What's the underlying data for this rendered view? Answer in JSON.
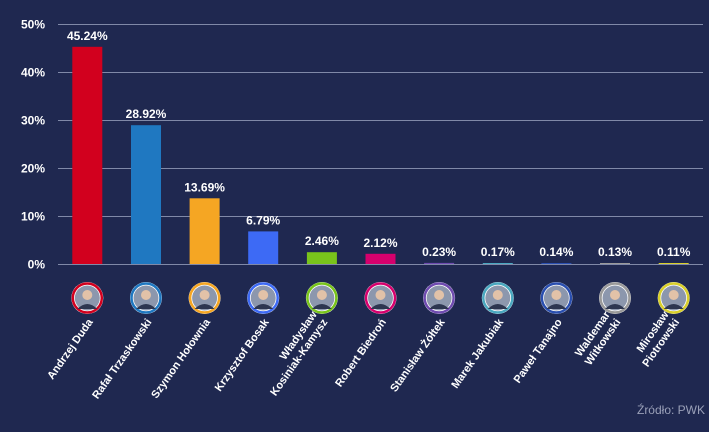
{
  "source_text": "Źródło: PWK",
  "chart_data": {
    "type": "bar",
    "ylim": [
      0,
      50
    ],
    "yticks": [
      0,
      10,
      20,
      30,
      40,
      50
    ],
    "ytick_labels": [
      "0%",
      "10%",
      "20%",
      "30%",
      "40%",
      "50%"
    ],
    "grid": true,
    "categories": [
      [
        "Andrzej Duda"
      ],
      [
        "Rafał Trzaskowski"
      ],
      [
        "Szymon Hołownia"
      ],
      [
        "Krzysztof Bosak"
      ],
      [
        "Władysław",
        "Kosiniak-Kamysz"
      ],
      [
        "Robert Biedroń"
      ],
      [
        "Stanisław Żółtek"
      ],
      [
        "Marek Jakubiak"
      ],
      [
        "Paweł Tanajno"
      ],
      [
        "Waldemar",
        "Witkowski"
      ],
      [
        "Mirosław",
        "Piotrowski"
      ]
    ],
    "values": [
      45.24,
      28.92,
      13.69,
      6.79,
      2.46,
      2.12,
      0.23,
      0.17,
      0.14,
      0.13,
      0.11
    ],
    "data_labels": [
      "45.24%",
      "28.92%",
      "13.69%",
      "6.79%",
      "2.46%",
      "2.12%",
      "0.23%",
      "0.17%",
      "0.14%",
      "0.13%",
      "0.11%"
    ],
    "colors": [
      "#d2001e",
      "#1f78c1",
      "#f5a623",
      "#3d6af5",
      "#79c41b",
      "#d6006d",
      "#6f4bb0",
      "#4aa8c0",
      "#2a4fb0",
      "#9a9a9a",
      "#d9cf2a"
    ],
    "photo_icons": [
      "portrait-photo-icon",
      "portrait-photo-icon",
      "portrait-photo-icon",
      "portrait-photo-icon",
      "portrait-photo-icon",
      "portrait-photo-icon",
      "portrait-photo-icon",
      "portrait-photo-icon",
      "portrait-photo-icon",
      "portrait-photo-icon",
      "portrait-photo-icon"
    ]
  }
}
